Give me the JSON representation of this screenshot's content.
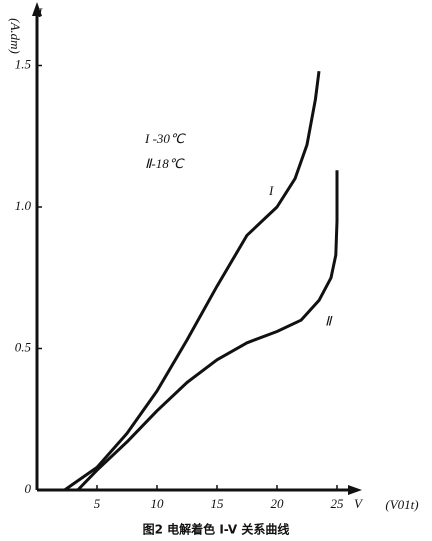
{
  "chart_data": {
    "type": "line",
    "y_label": "I",
    "y_unit": "(A.dm)",
    "x_label": "V",
    "x_unit": "(V01t)",
    "legend_lines": [
      "I -30℃",
      "Ⅱ-18℃"
    ],
    "caption": "图2  电解着色 I-V 关系曲线",
    "xlim": [
      0,
      26.5
    ],
    "xticks": [
      5,
      10,
      15,
      20,
      25
    ],
    "ylim": [
      0,
      1.7
    ],
    "yticks": [
      0,
      0.5,
      {
        "value": 1,
        "label": "1.0"
      },
      1.5
    ],
    "color": "#111111",
    "series": [
      {
        "name": "I",
        "x": [
          2.3,
          5,
          7.5,
          10,
          12.5,
          15,
          17.5,
          20,
          21.5,
          22.5,
          23.2,
          23.5
        ],
        "values": [
          0,
          0.08,
          0.2,
          0.35,
          0.53,
          0.72,
          0.9,
          1.0,
          1.1,
          1.22,
          1.38,
          1.48
        ]
      },
      {
        "name": "Ⅱ",
        "x": [
          3.4,
          5,
          7.5,
          10,
          12.5,
          15,
          17.5,
          20,
          22,
          23.5,
          24.5,
          24.9,
          25,
          25
        ],
        "values": [
          0,
          0.07,
          0.17,
          0.28,
          0.38,
          0.46,
          0.52,
          0.56,
          0.6,
          0.67,
          0.75,
          0.83,
          0.95,
          1.13
        ]
      }
    ]
  }
}
